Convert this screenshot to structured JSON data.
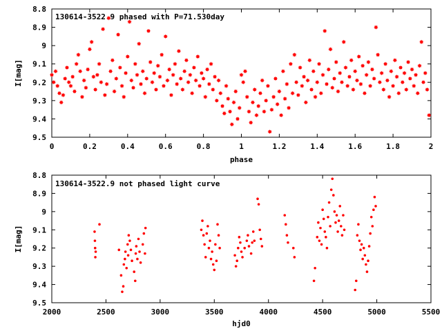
{
  "chart_data": [
    {
      "type": "scatter",
      "title": "130614-3522.9 phased with P=71.530day",
      "xlabel": "phase",
      "ylabel": "I[mag]",
      "xlim": [
        0,
        2
      ],
      "ylim": [
        9.5,
        8.8
      ],
      "y_inverted": true,
      "x_ticks": [
        "0",
        "0.2",
        "0.4",
        "0.6",
        "0.8",
        "1",
        "1.2",
        "1.4",
        "1.6",
        "1.8",
        "2"
      ],
      "y_ticks": [
        "8.8",
        "8.9",
        "9",
        "9.1",
        "9.2",
        "9.3",
        "9.4",
        "9.5"
      ],
      "marker": "filled-star",
      "color": "#ff0000",
      "grid": false,
      "points": [
        [
          0.0,
          9.16
        ],
        [
          0.01,
          9.2
        ],
        [
          0.02,
          9.14
        ],
        [
          0.03,
          9.22
        ],
        [
          0.04,
          9.26
        ],
        [
          0.05,
          9.31
        ],
        [
          0.06,
          9.27
        ],
        [
          0.07,
          9.18
        ],
        [
          0.08,
          9.12
        ],
        [
          0.09,
          9.2
        ],
        [
          0.1,
          9.22
        ],
        [
          0.11,
          9.17
        ],
        [
          0.12,
          9.25
        ],
        [
          0.13,
          9.1
        ],
        [
          0.14,
          9.05
        ],
        [
          0.15,
          9.14
        ],
        [
          0.16,
          9.28
        ],
        [
          0.17,
          9.19
        ],
        [
          0.18,
          9.23
        ],
        [
          0.19,
          9.13
        ],
        [
          0.2,
          9.02
        ],
        [
          0.21,
          8.98
        ],
        [
          0.22,
          9.17
        ],
        [
          0.23,
          9.24
        ],
        [
          0.24,
          9.16
        ],
        [
          0.25,
          9.1
        ],
        [
          0.26,
          9.2
        ],
        [
          0.27,
          8.91
        ],
        [
          0.28,
          9.27
        ],
        [
          0.29,
          9.21
        ],
        [
          0.3,
          8.85
        ],
        [
          0.31,
          9.14
        ],
        [
          0.32,
          9.08
        ],
        [
          0.33,
          9.25
        ],
        [
          0.34,
          9.18
        ],
        [
          0.35,
          8.94
        ],
        [
          0.36,
          9.12
        ],
        [
          0.37,
          9.22
        ],
        [
          0.38,
          9.28
        ],
        [
          0.39,
          9.15
        ],
        [
          0.4,
          9.06
        ],
        [
          0.41,
          8.87
        ],
        [
          0.42,
          9.19
        ],
        [
          0.43,
          9.23
        ],
        [
          0.44,
          9.1
        ],
        [
          0.45,
          9.16
        ],
        [
          0.46,
          8.99
        ],
        [
          0.47,
          9.21
        ],
        [
          0.48,
          9.14
        ],
        [
          0.49,
          9.26
        ],
        [
          0.5,
          9.18
        ],
        [
          0.51,
          8.92
        ],
        [
          0.52,
          9.09
        ],
        [
          0.53,
          9.2
        ],
        [
          0.54,
          9.15
        ],
        [
          0.55,
          9.24
        ],
        [
          0.56,
          9.11
        ],
        [
          0.57,
          9.17
        ],
        [
          0.58,
          9.05
        ],
        [
          0.59,
          9.22
        ],
        [
          0.6,
          8.95
        ],
        [
          0.61,
          9.19
        ],
        [
          0.62,
          9.13
        ],
        [
          0.63,
          9.27
        ],
        [
          0.64,
          9.16
        ],
        [
          0.65,
          9.1
        ],
        [
          0.66,
          9.21
        ],
        [
          0.67,
          9.03
        ],
        [
          0.68,
          9.18
        ],
        [
          0.69,
          9.24
        ],
        [
          0.7,
          9.14
        ],
        [
          0.71,
          9.08
        ],
        [
          0.72,
          9.2
        ],
        [
          0.73,
          9.16
        ],
        [
          0.74,
          9.26
        ],
        [
          0.75,
          9.12
        ],
        [
          0.76,
          9.19
        ],
        [
          0.77,
          9.06
        ],
        [
          0.78,
          9.22
        ],
        [
          0.79,
          9.15
        ],
        [
          0.8,
          9.18
        ],
        [
          0.81,
          9.28
        ],
        [
          0.82,
          9.13
        ],
        [
          0.83,
          9.21
        ],
        [
          0.84,
          9.1
        ],
        [
          0.85,
          9.24
        ],
        [
          0.86,
          9.17
        ],
        [
          0.87,
          9.3
        ],
        [
          0.88,
          9.19
        ],
        [
          0.89,
          9.26
        ],
        [
          0.9,
          9.33
        ],
        [
          0.91,
          9.37
        ],
        [
          0.92,
          9.22
        ],
        [
          0.93,
          9.29
        ],
        [
          0.94,
          9.36
        ],
        [
          0.95,
          9.43
        ],
        [
          0.96,
          9.31
        ],
        [
          0.97,
          9.25
        ],
        [
          0.98,
          9.4
        ],
        [
          0.99,
          9.34
        ],
        [
          1.0,
          9.16
        ],
        [
          1.01,
          9.2
        ],
        [
          1.02,
          9.14
        ],
        [
          1.03,
          9.28
        ],
        [
          1.04,
          9.36
        ],
        [
          1.05,
          9.42
        ],
        [
          1.06,
          9.31
        ],
        [
          1.07,
          9.24
        ],
        [
          1.08,
          9.38
        ],
        [
          1.09,
          9.33
        ],
        [
          1.1,
          9.26
        ],
        [
          1.11,
          9.19
        ],
        [
          1.12,
          9.36
        ],
        [
          1.13,
          9.3
        ],
        [
          1.14,
          9.22
        ],
        [
          1.15,
          9.47
        ],
        [
          1.16,
          9.35
        ],
        [
          1.17,
          9.28
        ],
        [
          1.18,
          9.18
        ],
        [
          1.19,
          9.32
        ],
        [
          1.2,
          9.25
        ],
        [
          1.21,
          9.38
        ],
        [
          1.22,
          9.14
        ],
        [
          1.23,
          9.29
        ],
        [
          1.24,
          9.21
        ],
        [
          1.25,
          9.34
        ],
        [
          1.26,
          9.1
        ],
        [
          1.27,
          9.26
        ],
        [
          1.28,
          9.05
        ],
        [
          1.29,
          9.2
        ],
        [
          1.3,
          9.27
        ],
        [
          1.31,
          9.12
        ],
        [
          1.32,
          9.22
        ],
        [
          1.33,
          9.17
        ],
        [
          1.34,
          9.31
        ],
        [
          1.35,
          9.19
        ],
        [
          1.36,
          9.08
        ],
        [
          1.37,
          9.24
        ],
        [
          1.38,
          9.14
        ],
        [
          1.39,
          9.28
        ],
        [
          1.4,
          9.2
        ],
        [
          1.41,
          9.1
        ],
        [
          1.42,
          9.26
        ],
        [
          1.43,
          9.16
        ],
        [
          1.44,
          8.92
        ],
        [
          1.45,
          9.21
        ],
        [
          1.46,
          9.13
        ],
        [
          1.47,
          9.02
        ],
        [
          1.48,
          9.23
        ],
        [
          1.49,
          9.18
        ],
        [
          1.5,
          9.09
        ],
        [
          1.51,
          9.25
        ],
        [
          1.52,
          9.15
        ],
        [
          1.53,
          9.2
        ],
        [
          1.54,
          8.98
        ],
        [
          1.55,
          9.12
        ],
        [
          1.56,
          9.22
        ],
        [
          1.57,
          9.17
        ],
        [
          1.58,
          9.08
        ],
        [
          1.59,
          9.24
        ],
        [
          1.6,
          9.14
        ],
        [
          1.61,
          9.19
        ],
        [
          1.62,
          9.06
        ],
        [
          1.63,
          9.21
        ],
        [
          1.64,
          9.11
        ],
        [
          1.65,
          9.26
        ],
        [
          1.66,
          9.16
        ],
        [
          1.67,
          9.09
        ],
        [
          1.68,
          9.22
        ],
        [
          1.69,
          9.13
        ],
        [
          1.7,
          9.18
        ],
        [
          1.71,
          8.9
        ],
        [
          1.72,
          9.05
        ],
        [
          1.73,
          9.2
        ],
        [
          1.74,
          9.15
        ],
        [
          1.75,
          9.24
        ],
        [
          1.76,
          9.1
        ],
        [
          1.77,
          9.19
        ],
        [
          1.78,
          9.28
        ],
        [
          1.79,
          9.14
        ],
        [
          1.8,
          9.22
        ],
        [
          1.81,
          9.08
        ],
        [
          1.82,
          9.17
        ],
        [
          1.83,
          9.26
        ],
        [
          1.84,
          9.12
        ],
        [
          1.85,
          9.2
        ],
        [
          1.86,
          9.15
        ],
        [
          1.87,
          9.24
        ],
        [
          1.88,
          9.09
        ],
        [
          1.89,
          9.18
        ],
        [
          1.9,
          9.13
        ],
        [
          1.91,
          9.22
        ],
        [
          1.92,
          9.16
        ],
        [
          1.93,
          9.26
        ],
        [
          1.94,
          9.11
        ],
        [
          1.95,
          8.98
        ],
        [
          1.96,
          9.2
        ],
        [
          1.97,
          9.15
        ],
        [
          1.98,
          9.24
        ],
        [
          1.99,
          9.38
        ]
      ]
    },
    {
      "type": "scatter",
      "title": "130614-3522.9 not phased light curve",
      "xlabel": "hjd0",
      "ylabel": "I[mag]",
      "xlim": [
        2000,
        5500
      ],
      "ylim": [
        9.5,
        8.8
      ],
      "y_inverted": true,
      "x_ticks": [
        "2000",
        "2500",
        "3000",
        "3500",
        "4000",
        "4500",
        "5000",
        "5500"
      ],
      "y_ticks": [
        "8.8",
        "8.9",
        "9",
        "9.1",
        "9.2",
        "9.3",
        "9.4",
        "9.5"
      ],
      "marker": "filled-dot",
      "color": "#ff0000",
      "grid": false,
      "points": [
        [
          2395,
          9.11
        ],
        [
          2398,
          9.16
        ],
        [
          2400,
          9.2
        ],
        [
          2402,
          9.25
        ],
        [
          2405,
          9.22
        ],
        [
          2440,
          9.07
        ],
        [
          2620,
          9.21
        ],
        [
          2640,
          9.35
        ],
        [
          2650,
          9.44
        ],
        [
          2660,
          9.41
        ],
        [
          2665,
          9.29
        ],
        [
          2675,
          9.26
        ],
        [
          2680,
          9.22
        ],
        [
          2690,
          9.31
        ],
        [
          2700,
          9.18
        ],
        [
          2705,
          9.24
        ],
        [
          2710,
          9.13
        ],
        [
          2720,
          9.16
        ],
        [
          2730,
          9.21
        ],
        [
          2740,
          9.27
        ],
        [
          2760,
          9.33
        ],
        [
          2770,
          9.38
        ],
        [
          2775,
          9.23
        ],
        [
          2780,
          9.19
        ],
        [
          2790,
          9.26
        ],
        [
          2800,
          9.15
        ],
        [
          2810,
          9.22
        ],
        [
          2820,
          9.28
        ],
        [
          2840,
          9.18
        ],
        [
          2850,
          9.12
        ],
        [
          2860,
          9.23
        ],
        [
          2865,
          9.09
        ],
        [
          3380,
          9.1
        ],
        [
          3390,
          9.05
        ],
        [
          3400,
          9.13
        ],
        [
          3410,
          9.18
        ],
        [
          3420,
          9.25
        ],
        [
          3430,
          9.12
        ],
        [
          3440,
          9.08
        ],
        [
          3450,
          9.2
        ],
        [
          3460,
          9.16
        ],
        [
          3470,
          9.26
        ],
        [
          3480,
          9.22
        ],
        [
          3490,
          9.29
        ],
        [
          3500,
          9.32
        ],
        [
          3510,
          9.18
        ],
        [
          3520,
          9.27
        ],
        [
          3530,
          9.07
        ],
        [
          3540,
          9.13
        ],
        [
          3550,
          9.2
        ],
        [
          3690,
          9.24
        ],
        [
          3700,
          9.3
        ],
        [
          3710,
          9.27
        ],
        [
          3720,
          9.2
        ],
        [
          3730,
          9.14
        ],
        [
          3740,
          9.17
        ],
        [
          3750,
          9.22
        ],
        [
          3760,
          9.25
        ],
        [
          3780,
          9.2
        ],
        [
          3800,
          9.16
        ],
        [
          3810,
          9.13
        ],
        [
          3820,
          9.19
        ],
        [
          3840,
          9.23
        ],
        [
          3850,
          9.17
        ],
        [
          3860,
          9.11
        ],
        [
          3870,
          9.16
        ],
        [
          3900,
          8.93
        ],
        [
          3910,
          8.96
        ],
        [
          3920,
          9.1
        ],
        [
          3930,
          9.15
        ],
        [
          3940,
          9.19
        ],
        [
          4150,
          9.02
        ],
        [
          4160,
          9.07
        ],
        [
          4170,
          9.13
        ],
        [
          4180,
          9.17
        ],
        [
          4230,
          9.2
        ],
        [
          4240,
          9.25
        ],
        [
          4420,
          9.38
        ],
        [
          4430,
          9.31
        ],
        [
          4450,
          9.14
        ],
        [
          4460,
          9.06
        ],
        [
          4470,
          9.16
        ],
        [
          4480,
          9.09
        ],
        [
          4490,
          9.18
        ],
        [
          4500,
          8.99
        ],
        [
          4510,
          9.04
        ],
        [
          4520,
          9.11
        ],
        [
          4530,
          9.14
        ],
        [
          4540,
          9.2
        ],
        [
          4550,
          9.03
        ],
        [
          4560,
          8.95
        ],
        [
          4570,
          9.08
        ],
        [
          4580,
          8.88
        ],
        [
          4590,
          8.82
        ],
        [
          4600,
          8.91
        ],
        [
          4610,
          9.0
        ],
        [
          4620,
          9.06
        ],
        [
          4630,
          9.02
        ],
        [
          4640,
          9.11
        ],
        [
          4650,
          9.05
        ],
        [
          4660,
          8.97
        ],
        [
          4670,
          9.08
        ],
        [
          4680,
          9.13
        ],
        [
          4690,
          9.02
        ],
        [
          4700,
          9.1
        ],
        [
          4800,
          9.43
        ],
        [
          4810,
          9.38
        ],
        [
          4820,
          9.13
        ],
        [
          4830,
          9.07
        ],
        [
          4840,
          9.16
        ],
        [
          4850,
          9.21
        ],
        [
          4860,
          9.18
        ],
        [
          4870,
          9.26
        ],
        [
          4880,
          9.2
        ],
        [
          4890,
          9.24
        ],
        [
          4900,
          9.29
        ],
        [
          4910,
          9.33
        ],
        [
          4920,
          9.27
        ],
        [
          4930,
          9.19
        ],
        [
          4940,
          9.12
        ],
        [
          4950,
          9.03
        ],
        [
          4960,
          9.08
        ],
        [
          4970,
          8.99
        ],
        [
          4980,
          8.92
        ],
        [
          4990,
          8.97
        ]
      ]
    }
  ]
}
